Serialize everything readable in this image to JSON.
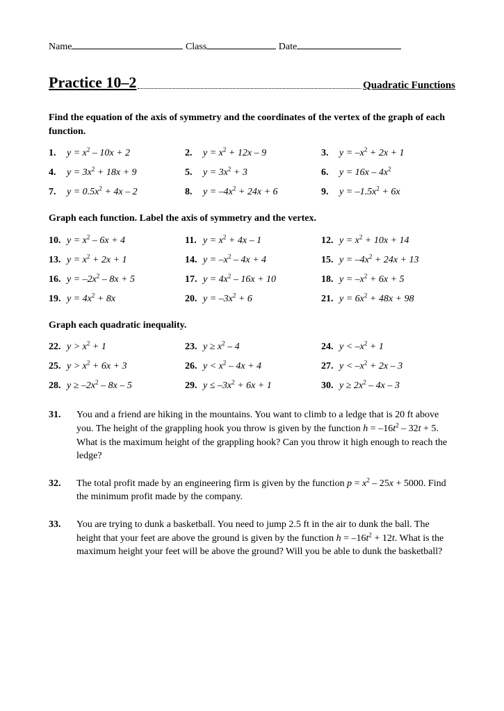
{
  "header": {
    "name_label": "Name",
    "class_label": "Class",
    "date_label": "Date"
  },
  "title": {
    "main": "Practice 10–2",
    "right": "Quadratic Functions"
  },
  "section1": {
    "instr": "Find the equation of the axis of symmetry and the coordinates of the vertex of the graph of each function.",
    "problems": [
      {
        "n": "1.",
        "eq": "y = x² – 10x + 2"
      },
      {
        "n": "2.",
        "eq": "y = x² + 12x – 9"
      },
      {
        "n": "3.",
        "eq": "y = –x² + 2x + 1"
      },
      {
        "n": "4.",
        "eq": "y = 3x² + 18x + 9"
      },
      {
        "n": "5.",
        "eq": "y = 3x² + 3"
      },
      {
        "n": "6.",
        "eq": "y = 16x – 4x²"
      },
      {
        "n": "7.",
        "eq": "y = 0.5x² + 4x – 2"
      },
      {
        "n": "8.",
        "eq": "y = –4x² + 24x + 6"
      },
      {
        "n": "9.",
        "eq": "y = –1.5x² + 6x"
      }
    ]
  },
  "section2": {
    "instr": "Graph each function. Label the axis of symmetry and the vertex.",
    "problems": [
      {
        "n": "10.",
        "eq": "y = x² – 6x + 4"
      },
      {
        "n": "11.",
        "eq": "y = x² + 4x – 1"
      },
      {
        "n": "12.",
        "eq": "y = x² + 10x + 14"
      },
      {
        "n": "13.",
        "eq": "y = x² + 2x + 1"
      },
      {
        "n": "14.",
        "eq": "y = –x² – 4x + 4"
      },
      {
        "n": "15.",
        "eq": "y = –4x² + 24x + 13"
      },
      {
        "n": "16.",
        "eq": "y = –2x² – 8x + 5"
      },
      {
        "n": "17.",
        "eq": "y = 4x² – 16x + 10"
      },
      {
        "n": "18.",
        "eq": "y = –x² + 6x + 5"
      },
      {
        "n": "19.",
        "eq": "y = 4x² + 8x"
      },
      {
        "n": "20.",
        "eq": "y = –3x² + 6"
      },
      {
        "n": "21.",
        "eq": "y = 6x² + 48x + 98"
      }
    ]
  },
  "section3": {
    "instr": "Graph each quadratic inequality.",
    "problems": [
      {
        "n": "22.",
        "eq": "y > x² + 1"
      },
      {
        "n": "23.",
        "eq": "y ≥ x² – 4"
      },
      {
        "n": "24.",
        "eq": "y < –x² + 1"
      },
      {
        "n": "25.",
        "eq": "y > x² + 6x + 3"
      },
      {
        "n": "26.",
        "eq": "y < x² – 4x + 4"
      },
      {
        "n": "27.",
        "eq": "y < –x² + 2x – 3"
      },
      {
        "n": "28.",
        "eq": "y ≥ –2x² – 8x – 5"
      },
      {
        "n": "29.",
        "eq": "y ≤ –3x² + 6x + 1"
      },
      {
        "n": "30.",
        "eq": "y ≥ 2x² – 4x – 3"
      }
    ]
  },
  "word_problems": [
    {
      "n": "31.",
      "text": "You and a friend are hiking in the mountains. You want to climb to a ledge that is 20 ft above you. The height of the grappling hook you throw is given by the function h = –16t² – 32t + 5. What is the maximum height of the grappling hook? Can you throw it high enough to reach the ledge?"
    },
    {
      "n": "32.",
      "text": "The total profit made by an engineering firm is given by the function p = x² – 25x + 5000. Find the minimum profit made by the company."
    },
    {
      "n": "33.",
      "text": "You are trying to dunk a basketball. You need to jump 2.5 ft in the air to dunk the ball. The height that your feet are above the ground is given by the function h = –16t² + 12t. What is the maximum height your feet will be above the ground? Will you be able to dunk the basketball?"
    }
  ]
}
